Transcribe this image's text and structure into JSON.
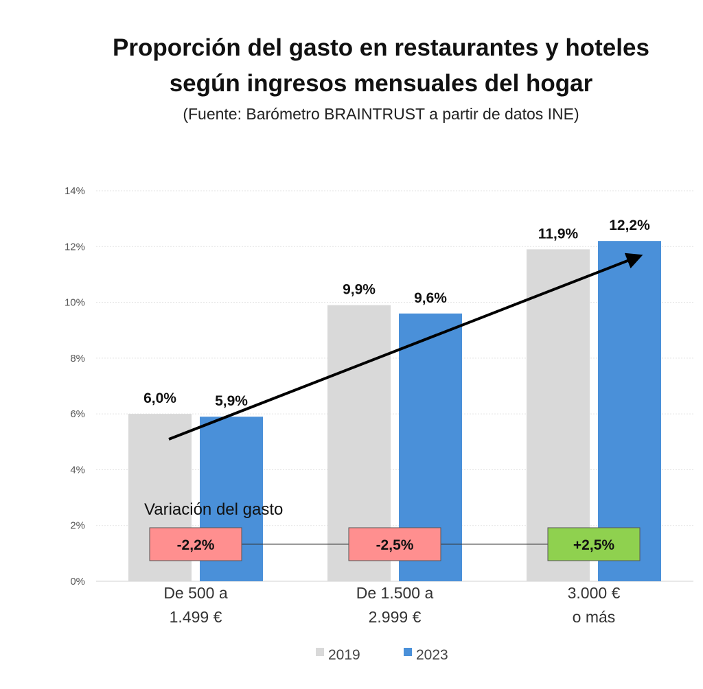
{
  "chart_data": {
    "type": "bar",
    "title_line1": "Proporción del gasto en restaurantes y hoteles",
    "title_line2": "según ingresos mensuales del hogar",
    "subtitle": "(Fuente: Barómetro BRAINTRUST a partir de datos INE)",
    "categories": [
      [
        "De 500 a",
        "1.499 €"
      ],
      [
        "De 1.500 a",
        "2.999 €"
      ],
      [
        "3.000 €",
        "o más"
      ]
    ],
    "series": [
      {
        "name": "2019",
        "color": "#d9d9d9",
        "values": [
          6.0,
          9.9,
          11.9
        ],
        "labels": [
          "6,0%",
          "9,9%",
          "11,9%"
        ]
      },
      {
        "name": "2023",
        "color": "#4a90d9",
        "values": [
          5.9,
          9.6,
          12.2
        ],
        "labels": [
          "5,9%",
          "9,6%",
          "12,2%"
        ]
      }
    ],
    "ylim": [
      0,
      14
    ],
    "yticks": [
      0,
      2,
      4,
      6,
      8,
      10,
      12,
      14
    ],
    "ytick_labels": [
      "0%",
      "2%",
      "4%",
      "6%",
      "8%",
      "10%",
      "12%",
      "14%"
    ],
    "grid": true,
    "legend_position": "bottom",
    "variation": {
      "label": "Variación del gasto",
      "values": [
        "-2,2%",
        "-2,5%",
        "+2,5%"
      ],
      "colors": [
        "#ff8f8f",
        "#ff8f8f",
        "#8fd14f"
      ]
    },
    "trend_arrow": true
  }
}
